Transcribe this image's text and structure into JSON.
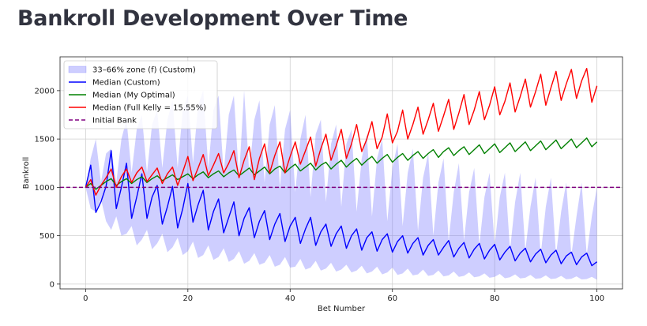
{
  "page": {
    "title": "Bankroll Development Over Time"
  },
  "chart_data": {
    "type": "line",
    "xlabel": "Bet Number",
    "ylabel": "Bankroll",
    "xlim": [
      -5,
      105
    ],
    "ylim": [
      -50,
      2350
    ],
    "x_ticks": [
      0,
      20,
      40,
      60,
      80,
      100
    ],
    "y_ticks": [
      0,
      500,
      1000,
      1500,
      2000
    ],
    "grid": true,
    "legend_position": "top-left",
    "colors": {
      "band": "#6666ff",
      "custom": "#0000ff",
      "optimal": "#008000",
      "kelly": "#ff0000",
      "initial": "#800080"
    },
    "band": {
      "name": "33–66% zone (f) (Custom)",
      "x": [
        0,
        1,
        2,
        3,
        4,
        5,
        6,
        7,
        8,
        9,
        10,
        11,
        12,
        13,
        14,
        15,
        16,
        17,
        18,
        19,
        20,
        21,
        22,
        23,
        24,
        25,
        26,
        27,
        28,
        29,
        30,
        31,
        32,
        33,
        34,
        35,
        36,
        37,
        38,
        39,
        40,
        41,
        42,
        43,
        44,
        45,
        46,
        47,
        48,
        49,
        50,
        51,
        52,
        53,
        54,
        55,
        56,
        57,
        58,
        59,
        60,
        61,
        62,
        63,
        64,
        65,
        66,
        67,
        68,
        69,
        70,
        71,
        72,
        73,
        74,
        75,
        76,
        77,
        78,
        79,
        80,
        81,
        82,
        83,
        84,
        85,
        86,
        87,
        88,
        89,
        90,
        91,
        92,
        93,
        94,
        95,
        96,
        97,
        98,
        99,
        100
      ],
      "upper": [
        1000,
        1300,
        1500,
        1050,
        1350,
        1400,
        1050,
        1500,
        1700,
        1150,
        1600,
        1750,
        1150,
        1650,
        1800,
        1200,
        1700,
        1900,
        1200,
        1800,
        1950,
        1250,
        1850,
        2000,
        1200,
        1800,
        1950,
        1150,
        1750,
        1950,
        1100,
        2000,
        1150,
        1700,
        1900,
        1050,
        1650,
        1850,
        1000,
        1600,
        1800,
        950,
        1500,
        1750,
        900,
        1550,
        1700,
        850,
        1450,
        1650,
        800,
        1450,
        1600,
        750,
        1300,
        1550,
        700,
        1300,
        1500,
        650,
        1200,
        1450,
        600,
        1150,
        1400,
        550,
        1100,
        1350,
        500,
        1050,
        1300,
        450,
        950,
        1250,
        450,
        950,
        1200,
        400,
        900,
        1150,
        400,
        900,
        1150,
        350,
        850,
        1150,
        350,
        800,
        1100,
        300,
        800,
        1100,
        300,
        750,
        1050,
        300,
        700,
        1050,
        300,
        700,
        1000
      ],
      "lower": [
        1000,
        780,
        750,
        880,
        650,
        560,
        700,
        500,
        520,
        600,
        400,
        460,
        560,
        360,
        420,
        520,
        330,
        380,
        480,
        300,
        340,
        440,
        270,
        300,
        400,
        250,
        280,
        370,
        230,
        260,
        340,
        210,
        240,
        320,
        200,
        220,
        300,
        180,
        200,
        280,
        170,
        180,
        260,
        150,
        170,
        240,
        140,
        160,
        220,
        130,
        150,
        200,
        120,
        140,
        190,
        110,
        130,
        180,
        100,
        120,
        170,
        95,
        110,
        160,
        90,
        100,
        150,
        85,
        95,
        140,
        80,
        90,
        130,
        75,
        85,
        120,
        70,
        80,
        110,
        65,
        75,
        105,
        60,
        70,
        100,
        58,
        65,
        95,
        55,
        60,
        90,
        52,
        58,
        85,
        50,
        55,
        80,
        48,
        52,
        75,
        45
      ]
    },
    "series": [
      {
        "name": "Median (Custom)",
        "x": [
          0,
          1,
          2,
          3,
          4,
          5,
          6,
          7,
          8,
          9,
          10,
          11,
          12,
          13,
          14,
          15,
          16,
          17,
          18,
          19,
          20,
          21,
          22,
          23,
          24,
          25,
          26,
          27,
          28,
          29,
          30,
          31,
          32,
          33,
          34,
          35,
          36,
          37,
          38,
          39,
          40,
          41,
          42,
          43,
          44,
          45,
          46,
          47,
          48,
          49,
          50,
          51,
          52,
          53,
          54,
          55,
          56,
          57,
          58,
          59,
          60,
          61,
          62,
          63,
          64,
          65,
          66,
          67,
          68,
          69,
          70,
          71,
          72,
          73,
          74,
          75,
          76,
          77,
          78,
          79,
          80,
          81,
          82,
          83,
          84,
          85,
          86,
          87,
          88,
          89,
          90,
          91,
          92,
          93,
          94,
          95,
          96,
          97,
          98,
          99,
          100
        ],
        "values": [
          1000,
          1230,
          740,
          850,
          1010,
          1380,
          780,
          1000,
          1250,
          680,
          900,
          1140,
          680,
          900,
          1020,
          620,
          800,
          1010,
          580,
          780,
          1040,
          640,
          820,
          970,
          560,
          750,
          880,
          530,
          690,
          850,
          500,
          680,
          790,
          480,
          650,
          760,
          460,
          620,
          730,
          440,
          600,
          690,
          420,
          570,
          690,
          400,
          540,
          620,
          390,
          520,
          600,
          370,
          500,
          570,
          350,
          480,
          540,
          340,
          460,
          520,
          330,
          440,
          500,
          320,
          420,
          480,
          300,
          400,
          460,
          300,
          380,
          450,
          280,
          370,
          430,
          270,
          360,
          420,
          260,
          350,
          410,
          250,
          330,
          390,
          240,
          320,
          370,
          230,
          310,
          360,
          220,
          300,
          350,
          210,
          290,
          330,
          200,
          280,
          320,
          190,
          230
        ]
      },
      {
        "name": "Median (My Optimal)",
        "x": [
          0,
          1,
          2,
          3,
          4,
          5,
          6,
          7,
          8,
          9,
          10,
          11,
          12,
          13,
          14,
          15,
          16,
          17,
          18,
          19,
          20,
          21,
          22,
          23,
          24,
          25,
          26,
          27,
          28,
          29,
          30,
          31,
          32,
          33,
          34,
          35,
          36,
          37,
          38,
          39,
          40,
          41,
          42,
          43,
          44,
          45,
          46,
          47,
          48,
          49,
          50,
          51,
          52,
          53,
          54,
          55,
          56,
          57,
          58,
          59,
          60,
          61,
          62,
          63,
          64,
          65,
          66,
          67,
          68,
          69,
          70,
          71,
          72,
          73,
          74,
          75,
          76,
          77,
          78,
          79,
          80,
          81,
          82,
          83,
          84,
          85,
          86,
          87,
          88,
          89,
          90,
          91,
          92,
          93,
          94,
          95,
          96,
          97,
          98,
          99,
          100
        ],
        "values": [
          1000,
          1040,
          980,
          1020,
          1060,
          1090,
          1020,
          1060,
          1090,
          1040,
          1080,
          1110,
          1050,
          1090,
          1120,
          1070,
          1100,
          1130,
          1080,
          1110,
          1140,
          1090,
          1130,
          1160,
          1100,
          1140,
          1170,
          1110,
          1150,
          1180,
          1120,
          1160,
          1200,
          1130,
          1170,
          1210,
          1140,
          1190,
          1220,
          1150,
          1200,
          1240,
          1170,
          1210,
          1250,
          1180,
          1230,
          1260,
          1190,
          1240,
          1280,
          1210,
          1260,
          1300,
          1230,
          1280,
          1320,
          1250,
          1300,
          1340,
          1260,
          1310,
          1350,
          1280,
          1330,
          1370,
          1300,
          1350,
          1390,
          1310,
          1370,
          1410,
          1330,
          1380,
          1420,
          1340,
          1390,
          1440,
          1350,
          1400,
          1450,
          1360,
          1410,
          1460,
          1370,
          1420,
          1470,
          1380,
          1430,
          1480,
          1390,
          1440,
          1490,
          1400,
          1450,
          1500,
          1410,
          1460,
          1510,
          1420,
          1470
        ]
      },
      {
        "name": "Median (Full Kelly = 15.55%)",
        "x": [
          0,
          1,
          2,
          3,
          4,
          5,
          6,
          7,
          8,
          9,
          10,
          11,
          12,
          13,
          14,
          15,
          16,
          17,
          18,
          19,
          20,
          21,
          22,
          23,
          24,
          25,
          26,
          27,
          28,
          29,
          30,
          31,
          32,
          33,
          34,
          35,
          36,
          37,
          38,
          39,
          40,
          41,
          42,
          43,
          44,
          45,
          46,
          47,
          48,
          49,
          50,
          51,
          52,
          53,
          54,
          55,
          56,
          57,
          58,
          59,
          60,
          61,
          62,
          63,
          64,
          65,
          66,
          67,
          68,
          69,
          70,
          71,
          72,
          73,
          74,
          75,
          76,
          77,
          78,
          79,
          80,
          81,
          82,
          83,
          84,
          85,
          86,
          87,
          88,
          89,
          90,
          91,
          92,
          93,
          94,
          95,
          96,
          97,
          98,
          99,
          100
        ],
        "values": [
          1000,
          1080,
          920,
          1020,
          1100,
          1190,
          1000,
          1110,
          1190,
          1050,
          1150,
          1210,
          1060,
          1130,
          1200,
          1040,
          1140,
          1210,
          1020,
          1160,
          1320,
          1070,
          1200,
          1340,
          1120,
          1230,
          1350,
          1150,
          1250,
          1380,
          1100,
          1280,
          1420,
          1080,
          1300,
          1450,
          1150,
          1330,
          1470,
          1150,
          1320,
          1470,
          1240,
          1380,
          1520,
          1220,
          1400,
          1550,
          1280,
          1430,
          1600,
          1300,
          1450,
          1650,
          1370,
          1500,
          1680,
          1400,
          1520,
          1760,
          1460,
          1580,
          1800,
          1500,
          1650,
          1830,
          1550,
          1700,
          1870,
          1580,
          1740,
          1910,
          1600,
          1770,
          1960,
          1650,
          1800,
          1990,
          1700,
          1850,
          2040,
          1750,
          1890,
          2080,
          1780,
          1940,
          2120,
          1830,
          1990,
          2170,
          1850,
          2030,
          2200,
          1900,
          2070,
          2220,
          1920,
          2100,
          2230,
          1880,
          2050
        ]
      }
    ],
    "initial_bank": {
      "name": "Initial Bank",
      "value": 1000
    }
  }
}
